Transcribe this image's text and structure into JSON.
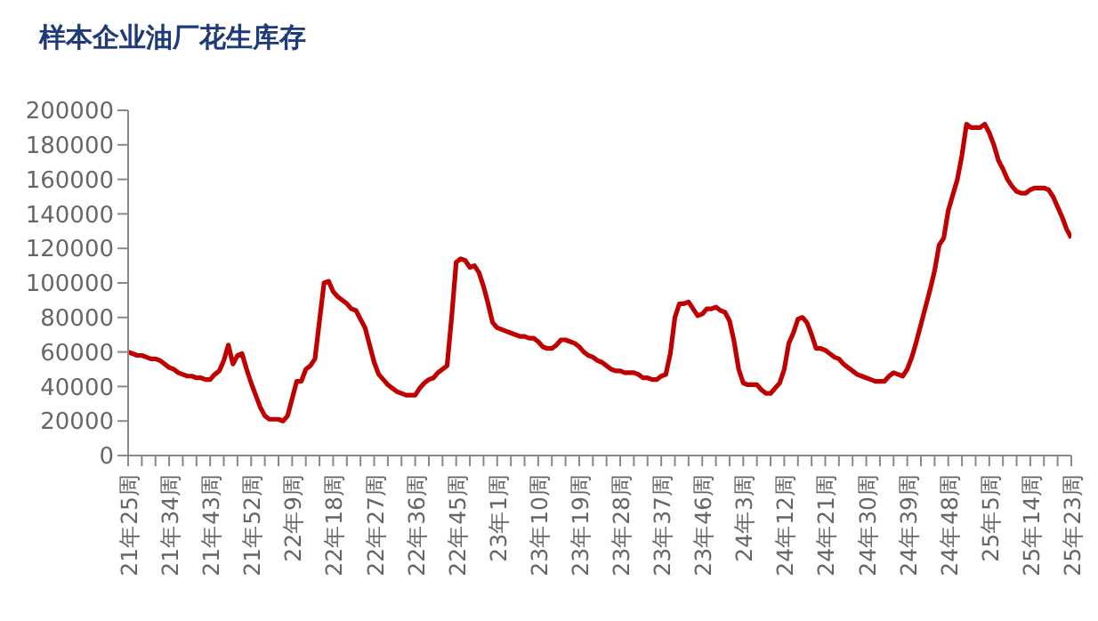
{
  "chart_data": {
    "type": "line",
    "title": "样本企业油厂花生库存",
    "categories": [
      "21年25周",
      null,
      null,
      null,
      null,
      null,
      null,
      null,
      null,
      "21年34周",
      null,
      null,
      null,
      null,
      null,
      null,
      null,
      null,
      "21年43周",
      null,
      null,
      null,
      null,
      null,
      null,
      null,
      null,
      "21年52周",
      null,
      null,
      null,
      null,
      null,
      null,
      null,
      null,
      "22年9周",
      null,
      null,
      null,
      null,
      null,
      null,
      null,
      null,
      "22年18周",
      null,
      null,
      null,
      null,
      null,
      null,
      null,
      null,
      "22年27周",
      null,
      null,
      null,
      null,
      null,
      null,
      null,
      null,
      "22年36周",
      null,
      null,
      null,
      null,
      null,
      null,
      null,
      null,
      "22年45周",
      null,
      null,
      null,
      null,
      null,
      null,
      null,
      null,
      "23年1周",
      null,
      null,
      null,
      null,
      null,
      null,
      null,
      null,
      "23年10周",
      null,
      null,
      null,
      null,
      null,
      null,
      null,
      null,
      "23年19周",
      null,
      null,
      null,
      null,
      null,
      null,
      null,
      null,
      "23年28周",
      null,
      null,
      null,
      null,
      null,
      null,
      null,
      null,
      "23年37周",
      null,
      null,
      null,
      null,
      null,
      null,
      null,
      null,
      "23年46周",
      null,
      null,
      null,
      null,
      null,
      null,
      null,
      null,
      "24年3周",
      null,
      null,
      null,
      null,
      null,
      null,
      null,
      null,
      "24年12周",
      null,
      null,
      null,
      null,
      null,
      null,
      null,
      null,
      "24年21周",
      null,
      null,
      null,
      null,
      null,
      null,
      null,
      null,
      "24年30周",
      null,
      null,
      null,
      null,
      null,
      null,
      null,
      null,
      "24年39周",
      null,
      null,
      null,
      null,
      null,
      null,
      null,
      null,
      "24年48周",
      null,
      null,
      null,
      null,
      null,
      null,
      null,
      null,
      "25年5周",
      null,
      null,
      null,
      null,
      null,
      null,
      null,
      null,
      "25年14周",
      null,
      null,
      null,
      null,
      null,
      null,
      null,
      null,
      "25年23周"
    ],
    "series": [
      {
        "color": "#c00000",
        "values": [
          60000,
          59000,
          58000,
          58000,
          57000,
          56000,
          56000,
          55000,
          53000,
          51000,
          50000,
          48000,
          47000,
          46000,
          46000,
          45000,
          45000,
          44000,
          44000,
          47000,
          49000,
          55000,
          64000,
          53000,
          58000,
          59000,
          50000,
          42000,
          35000,
          28000,
          23000,
          21000,
          21000,
          21000,
          20000,
          23000,
          33000,
          43000,
          43000,
          50000,
          52000,
          56000,
          78000,
          100000,
          101000,
          95000,
          92000,
          90000,
          88000,
          85000,
          84000,
          79000,
          74000,
          64000,
          54000,
          47000,
          44000,
          41000,
          39000,
          37000,
          36000,
          35000,
          35000,
          35000,
          39000,
          42000,
          44000,
          45000,
          48000,
          50000,
          52000,
          80000,
          112000,
          114000,
          113000,
          109000,
          110000,
          106000,
          98000,
          88000,
          77000,
          74000,
          73000,
          72000,
          71000,
          70000,
          69000,
          69000,
          68000,
          68000,
          66000,
          63000,
          62000,
          62000,
          64000,
          67000,
          67000,
          66000,
          65000,
          63000,
          60000,
          58000,
          57000,
          55000,
          54000,
          52000,
          50000,
          49000,
          49000,
          48000,
          48000,
          48000,
          47000,
          45000,
          45000,
          44000,
          44000,
          46000,
          47000,
          59000,
          80000,
          88000,
          88000,
          89000,
          85000,
          81000,
          82000,
          85000,
          85000,
          86000,
          84000,
          83000,
          78000,
          66000,
          50000,
          42000,
          41000,
          41000,
          41000,
          38000,
          36000,
          36000,
          39000,
          42000,
          50000,
          65000,
          71000,
          79000,
          80000,
          77000,
          70000,
          62000,
          62000,
          61000,
          59000,
          57000,
          56000,
          53000,
          51000,
          49000,
          47000,
          46000,
          45000,
          44000,
          43000,
          43000,
          43000,
          46000,
          48000,
          47000,
          46000,
          50000,
          57000,
          66000,
          76000,
          86000,
          96000,
          107000,
          122000,
          126000,
          142000,
          151000,
          160000,
          174000,
          192000,
          190000,
          190000,
          190000,
          192000,
          187000,
          180000,
          171000,
          166000,
          160000,
          156000,
          153000,
          152000,
          152000,
          154000,
          155000,
          155000,
          155000,
          154000,
          150000,
          144000,
          138000,
          131000,
          126000
        ]
      }
    ],
    "ylim": [
      0,
      200000
    ],
    "yticks": [
      0,
      20000,
      40000,
      60000,
      80000,
      100000,
      120000,
      140000,
      160000,
      180000,
      200000
    ]
  }
}
